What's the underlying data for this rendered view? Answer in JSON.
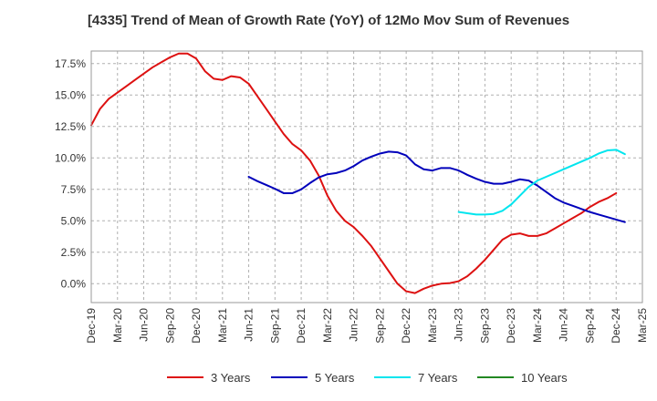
{
  "chart_data": {
    "type": "line",
    "title": "[4335]  Trend of Mean of Growth Rate (YoY) of 12Mo Mov Sum of Revenues",
    "xlabel": "",
    "ylabel": "",
    "ylim": [
      -1.5,
      18.5
    ],
    "y_ticks": [
      0.0,
      2.5,
      5.0,
      7.5,
      10.0,
      12.5,
      15.0,
      17.5
    ],
    "y_tick_labels": [
      "0.0%",
      "2.5%",
      "5.0%",
      "7.5%",
      "10.0%",
      "12.5%",
      "15.0%",
      "17.5%"
    ],
    "x_tick_labels": [
      "Dec-19",
      "Mar-20",
      "Jun-20",
      "Sep-20",
      "Dec-20",
      "Mar-21",
      "Jun-21",
      "Sep-21",
      "Dec-21",
      "Mar-22",
      "Jun-22",
      "Sep-22",
      "Dec-22",
      "Mar-23",
      "Jun-23",
      "Sep-23",
      "Dec-23",
      "Mar-24",
      "Jun-24",
      "Sep-24",
      "Dec-24",
      "Mar-25"
    ],
    "x_start": "Dec-19",
    "x_months_span": 63,
    "grid": true,
    "legend_position": "bottom",
    "series": [
      {
        "name": "3 Years",
        "color": "#dd1111",
        "start_month_index": 0,
        "values": [
          12.6,
          13.9,
          14.7,
          15.2,
          15.7,
          16.2,
          16.7,
          17.2,
          17.6,
          18.0,
          18.3,
          18.3,
          17.9,
          16.9,
          16.3,
          16.2,
          16.5,
          16.4,
          15.9,
          14.9,
          13.9,
          12.9,
          11.9,
          11.1,
          10.6,
          9.8,
          8.6,
          7.0,
          5.8,
          5.0,
          4.5,
          3.8,
          3.0,
          2.0,
          1.0,
          0.0,
          -0.6,
          -0.75,
          -0.4,
          -0.15,
          0.0,
          0.05,
          0.2,
          0.6,
          1.2,
          1.9,
          2.7,
          3.5,
          3.9,
          4.0,
          3.8,
          3.8,
          4.0,
          4.4,
          4.8,
          5.2,
          5.6,
          6.1,
          6.5,
          6.8,
          7.2
        ]
      },
      {
        "name": "5 Years",
        "color": "#0000bb",
        "start_month_index": 18,
        "values": [
          8.5,
          8.15,
          7.85,
          7.55,
          7.2,
          7.2,
          7.5,
          8.0,
          8.45,
          8.7,
          8.8,
          9.0,
          9.35,
          9.8,
          10.1,
          10.35,
          10.5,
          10.45,
          10.2,
          9.5,
          9.1,
          9.0,
          9.2,
          9.2,
          9.0,
          8.65,
          8.35,
          8.1,
          7.95,
          7.95,
          8.1,
          8.3,
          8.2,
          7.8,
          7.3,
          6.8,
          6.45,
          6.2,
          5.95,
          5.7,
          5.5,
          5.3,
          5.1,
          4.9
        ]
      },
      {
        "name": "7 Years",
        "color": "#00e5ee",
        "start_month_index": 42,
        "values": [
          5.7,
          5.6,
          5.5,
          5.5,
          5.55,
          5.8,
          6.3,
          7.0,
          7.7,
          8.2,
          8.5,
          8.8,
          9.1,
          9.4,
          9.7,
          10.0,
          10.35,
          10.6,
          10.65,
          10.3
        ]
      },
      {
        "name": "10 Years",
        "color": "#228822",
        "start_month_index": 0,
        "values": []
      }
    ]
  }
}
